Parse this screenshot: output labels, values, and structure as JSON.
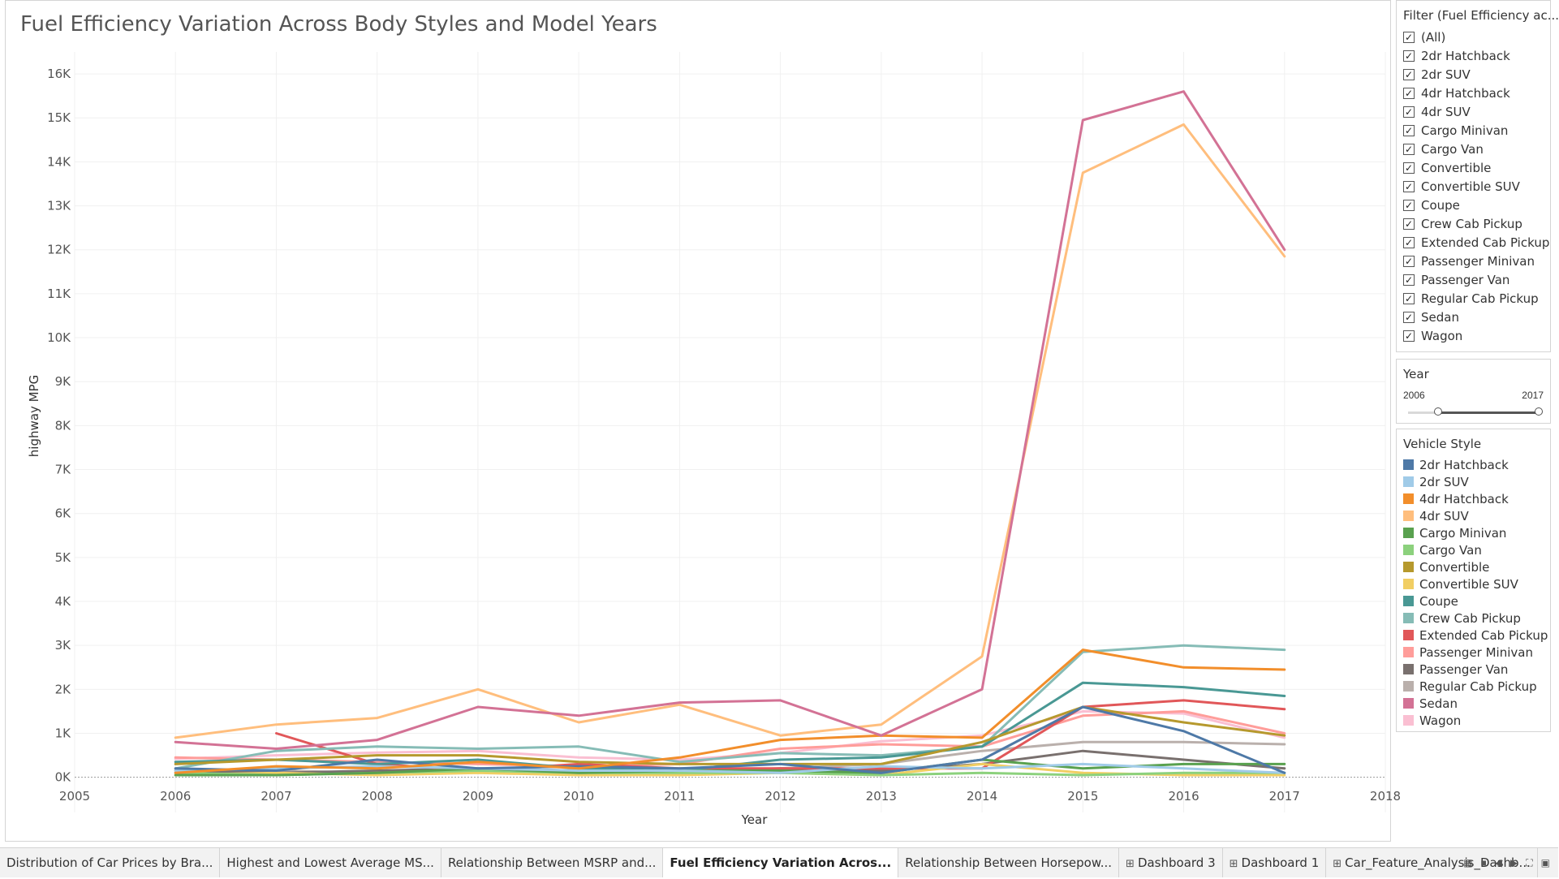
{
  "sheet_title": "Fuel Efficiency Variation Across Body Styles and Model Years",
  "filter": {
    "title": "Filter (Fuel Efficiency ac...",
    "items": [
      "(All)",
      "2dr Hatchback",
      "2dr SUV",
      "4dr Hatchback",
      "4dr SUV",
      "Cargo Minivan",
      "Cargo Van",
      "Convertible",
      "Convertible SUV",
      "Coupe",
      "Crew Cab Pickup",
      "Extended Cab Pickup",
      "Passenger Minivan",
      "Passenger Van",
      "Regular Cab Pickup",
      "Sedan",
      "Wagon"
    ],
    "check_glyph": "✓"
  },
  "year_filter": {
    "title": "Year",
    "min": "2006",
    "max": "2017"
  },
  "legend": {
    "title": "Vehicle Style",
    "items": [
      {
        "label": "2dr Hatchback",
        "color": "#4e79a7"
      },
      {
        "label": "2dr SUV",
        "color": "#a0cbe8"
      },
      {
        "label": "4dr Hatchback",
        "color": "#f28e2b"
      },
      {
        "label": "4dr SUV",
        "color": "#ffbe7d"
      },
      {
        "label": "Cargo Minivan",
        "color": "#59a14f"
      },
      {
        "label": "Cargo Van",
        "color": "#8cd17d"
      },
      {
        "label": "Convertible",
        "color": "#b6992d"
      },
      {
        "label": "Convertible SUV",
        "color": "#f1ce63"
      },
      {
        "label": "Coupe",
        "color": "#499894"
      },
      {
        "label": "Crew Cab Pickup",
        "color": "#86bcb6"
      },
      {
        "label": "Extended Cab Pickup",
        "color": "#e15759"
      },
      {
        "label": "Passenger Minivan",
        "color": "#ff9d9a"
      },
      {
        "label": "Passenger Van",
        "color": "#79706e"
      },
      {
        "label": "Regular Cab Pickup",
        "color": "#bab0ac"
      },
      {
        "label": "Sedan",
        "color": "#d37295"
      },
      {
        "label": "Wagon",
        "color": "#fabfd2"
      }
    ]
  },
  "tabs": [
    {
      "label": "Distribution of Car Prices by Bra...",
      "active": false,
      "dashboard": false
    },
    {
      "label": "Highest and Lowest Average MS...",
      "active": false,
      "dashboard": false
    },
    {
      "label": "Relationship Between MSRP and...",
      "active": false,
      "dashboard": false
    },
    {
      "label": "Fuel Efficiency Variation Acros...",
      "active": true,
      "dashboard": false
    },
    {
      "label": "Relationship Between Horsepow...",
      "active": false,
      "dashboard": false
    },
    {
      "label": "Dashboard 3",
      "active": false,
      "dashboard": true
    },
    {
      "label": "Dashboard 1",
      "active": false,
      "dashboard": true
    },
    {
      "label": "Car_Feature_Analysis_Dashb...",
      "active": false,
      "dashboard": true
    }
  ],
  "tab_icons": [
    "grid-view-icon",
    "filmstrip-icon",
    "prev-icon",
    "next-icon",
    "fullscreen-icon",
    "present-icon"
  ],
  "chart_data": {
    "type": "line",
    "xlabel": "Year",
    "ylabel": "highway MPG",
    "xlim": [
      2005,
      2018
    ],
    "ylim": [
      -800,
      16500
    ],
    "x_ticks": [
      "2005",
      "2006",
      "2007",
      "2008",
      "2009",
      "2010",
      "2011",
      "2012",
      "2013",
      "2014",
      "2015",
      "2016",
      "2017",
      "2018"
    ],
    "y_ticks": [
      {
        "v": 16000,
        "label": "16K"
      },
      {
        "v": 15000,
        "label": "15K"
      },
      {
        "v": 14000,
        "label": "14K"
      },
      {
        "v": 13000,
        "label": "13K"
      },
      {
        "v": 12000,
        "label": "12K"
      },
      {
        "v": 11000,
        "label": "11K"
      },
      {
        "v": 10000,
        "label": "10K"
      },
      {
        "v": 9000,
        "label": "9K"
      },
      {
        "v": 8000,
        "label": "8K"
      },
      {
        "v": 7000,
        "label": "7K"
      },
      {
        "v": 6000,
        "label": "6K"
      },
      {
        "v": 5000,
        "label": "5K"
      },
      {
        "v": 4000,
        "label": "4K"
      },
      {
        "v": 3000,
        "label": "3K"
      },
      {
        "v": 2000,
        "label": "2K"
      },
      {
        "v": 1000,
        "label": "1K"
      },
      {
        "v": 0,
        "label": "0K"
      }
    ],
    "grid": true,
    "series": [
      {
        "name": "Wagon",
        "color": "#fabfd2",
        "x": [
          2006,
          2007,
          2008,
          2009,
          2010,
          2011,
          2012,
          2013,
          2014,
          2015,
          2016,
          2017
        ],
        "y": [
          420,
          500,
          560,
          600,
          450,
          400,
          550,
          820,
          950,
          1500,
          1450,
          900
        ]
      },
      {
        "name": "Regular Cab Pickup",
        "color": "#bab0ac",
        "x": [
          2006,
          2007,
          2008,
          2009,
          2010,
          2011,
          2012,
          2013,
          2014,
          2015,
          2016,
          2017
        ],
        "y": [
          100,
          150,
          100,
          200,
          150,
          100,
          200,
          300,
          600,
          800,
          800,
          750
        ]
      },
      {
        "name": "Passenger Van",
        "color": "#79706e",
        "x": [
          2006,
          2007,
          2008,
          2009,
          2010,
          2011,
          2012,
          2013,
          2014,
          2015,
          2016,
          2017
        ],
        "y": [
          150,
          100,
          150,
          200,
          150,
          150,
          200,
          150,
          300,
          600,
          400,
          200
        ]
      },
      {
        "name": "Passenger Minivan",
        "color": "#ff9d9a",
        "x": [
          2006,
          2007,
          2008,
          2009,
          2010,
          2011,
          2012,
          2013,
          2014,
          2015,
          2016,
          2017
        ],
        "y": [
          450,
          400,
          350,
          300,
          250,
          300,
          650,
          750,
          700,
          1400,
          1500,
          1000
        ]
      },
      {
        "name": "Extended Cab Pickup",
        "color": "#e15759",
        "x": [
          2007,
          2008,
          2009,
          2010,
          2011,
          2012,
          2013,
          2014,
          2015,
          2016,
          2017
        ],
        "y": [
          1000,
          300,
          150,
          300,
          200,
          200,
          200,
          200,
          1600,
          1750,
          1550
        ]
      },
      {
        "name": "Crew Cab Pickup",
        "color": "#86bcb6",
        "x": [
          2006,
          2007,
          2008,
          2009,
          2010,
          2011,
          2012,
          2013,
          2014,
          2015,
          2016,
          2017
        ],
        "y": [
          200,
          600,
          700,
          650,
          700,
          350,
          550,
          500,
          700,
          2850,
          3000,
          2900
        ]
      },
      {
        "name": "Coupe",
        "color": "#499894",
        "x": [
          2006,
          2007,
          2008,
          2009,
          2010,
          2011,
          2012,
          2013,
          2014,
          2015,
          2016,
          2017
        ],
        "y": [
          350,
          400,
          300,
          400,
          200,
          150,
          400,
          450,
          700,
          2150,
          2050,
          1850
        ]
      },
      {
        "name": "Convertible SUV",
        "color": "#f1ce63",
        "x": [
          2006,
          2007,
          2008,
          2009,
          2010,
          2011,
          2012,
          2013,
          2014,
          2015,
          2016,
          2017
        ],
        "y": [
          50,
          100,
          50,
          100,
          50,
          50,
          100,
          50,
          300,
          100,
          50,
          50
        ]
      },
      {
        "name": "Convertible",
        "color": "#b6992d",
        "x": [
          2006,
          2007,
          2008,
          2009,
          2010,
          2011,
          2012,
          2013,
          2014,
          2015,
          2016,
          2017
        ],
        "y": [
          300,
          400,
          500,
          500,
          350,
          300,
          300,
          300,
          800,
          1600,
          1250,
          950
        ]
      },
      {
        "name": "Cargo Van",
        "color": "#8cd17d",
        "x": [
          2006,
          2007,
          2008,
          2009,
          2010,
          2011,
          2012,
          2013,
          2014,
          2015,
          2016,
          2017
        ],
        "y": [
          100,
          50,
          100,
          150,
          100,
          100,
          100,
          50,
          100,
          50,
          100,
          100
        ]
      },
      {
        "name": "Cargo Minivan",
        "color": "#59a14f",
        "x": [
          2006,
          2007,
          2008,
          2009,
          2010,
          2011,
          2012,
          2013,
          2014,
          2015,
          2016,
          2017
        ],
        "y": [
          50,
          50,
          100,
          200,
          100,
          150,
          150,
          100,
          400,
          200,
          300,
          300
        ]
      },
      {
        "name": "2dr SUV",
        "color": "#a0cbe8",
        "x": [
          2006,
          2007,
          2008,
          2009,
          2010,
          2011,
          2012,
          2013,
          2014,
          2015,
          2016,
          2017
        ],
        "y": [
          150,
          200,
          250,
          200,
          150,
          150,
          100,
          250,
          200,
          300,
          200,
          100
        ]
      },
      {
        "name": "2dr Hatchback",
        "color": "#4e79a7",
        "x": [
          2006,
          2007,
          2008,
          2009,
          2010,
          2011,
          2012,
          2013,
          2014,
          2015,
          2016,
          2017
        ],
        "y": [
          200,
          150,
          400,
          200,
          250,
          200,
          300,
          100,
          400,
          1600,
          1050,
          100
        ]
      },
      {
        "name": "4dr Hatchback",
        "color": "#f28e2b",
        "x": [
          2006,
          2007,
          2008,
          2009,
          2010,
          2011,
          2012,
          2013,
          2014,
          2015,
          2016,
          2017
        ],
        "y": [
          100,
          250,
          200,
          350,
          200,
          450,
          850,
          950,
          900,
          2900,
          2500,
          2450
        ]
      },
      {
        "name": "4dr SUV",
        "color": "#ffbe7d",
        "x": [
          2006,
          2007,
          2008,
          2009,
          2010,
          2011,
          2012,
          2013,
          2014,
          2015,
          2016,
          2017
        ],
        "y": [
          900,
          1200,
          1350,
          2000,
          1250,
          1650,
          950,
          1200,
          2750,
          13750,
          14850,
          11850
        ]
      },
      {
        "name": "Sedan",
        "color": "#d37295",
        "x": [
          2006,
          2007,
          2008,
          2009,
          2010,
          2011,
          2012,
          2013,
          2014,
          2015,
          2016,
          2017
        ],
        "y": [
          800,
          650,
          850,
          1600,
          1400,
          1700,
          1750,
          950,
          2000,
          14950,
          15600,
          12000
        ]
      }
    ]
  }
}
